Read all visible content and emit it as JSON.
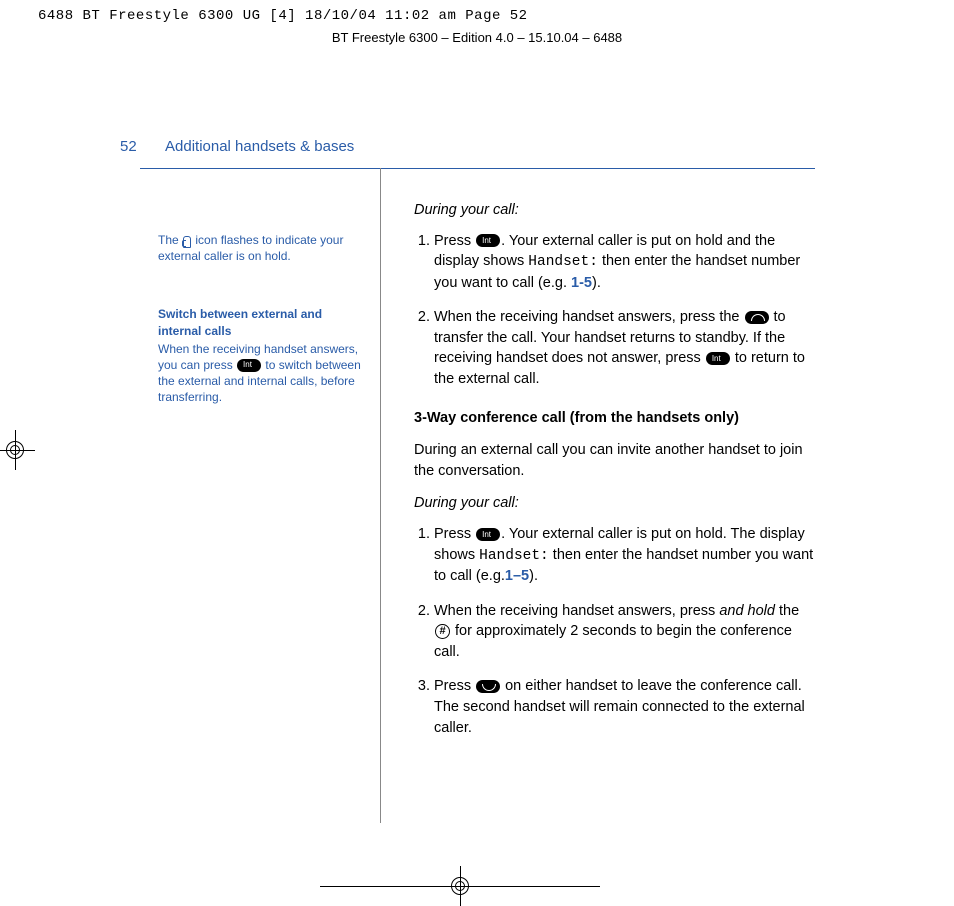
{
  "crop_info": "6488 BT Freestyle 6300 UG [4]  18/10/04  11:02 am  Page 52",
  "edition_line": "BT Freestyle 6300 – Edition 4.0 – 15.10.04 – 6488",
  "page_number": "52",
  "section_title": "Additional handsets & bases",
  "sidebar": {
    "note1_pre": "The ",
    "note1_post": " icon flashes to indicate your external caller is on hold.",
    "note2_title": "Switch between external and internal calls",
    "note2_body_pre": "When the receiving handset answers, you can press ",
    "note2_body_post": " to switch between the external and internal calls, before transferring."
  },
  "main": {
    "during1": "During your call:",
    "li1a": "Press ",
    "li1b": ". Your external caller is put on hold and the display shows ",
    "li1_mono": "Handset:",
    "li1c": " then enter the handset number you want to call (e.g. ",
    "li1_range": "1-5",
    "li1d": ").",
    "li2a": "When the receiving handset answers, press the ",
    "li2b": " to transfer the call. Your handset returns to standby. If the receiving handset does not answer, press ",
    "li2c": " to return to the external call.",
    "h3": "3-Way conference call (from the handsets only)",
    "p_intro": "During an external call you can invite another handset to join the conversation.",
    "during2": "During your call:",
    "li3a": "Press ",
    "li3b": ". Your external caller is put on hold. The display shows ",
    "li3_mono": "Handset:",
    "li3c": " then enter the handset number you want to call (e.g.",
    "li3_range": "1–5",
    "li3d": ").",
    "li4a": "When the receiving handset answers, press ",
    "li4_italic": "and hold",
    "li4b": " the ",
    "li4c": " for approximately 2 seconds to begin the conference call.",
    "li5a": "Press ",
    "li5b": " on either handset to leave the conference call. The second handset will remain connected to the external caller.",
    "hash_symbol": "#"
  },
  "colors": {
    "accent": "#2a5ca8",
    "text": "#000000",
    "background": "#ffffff"
  }
}
